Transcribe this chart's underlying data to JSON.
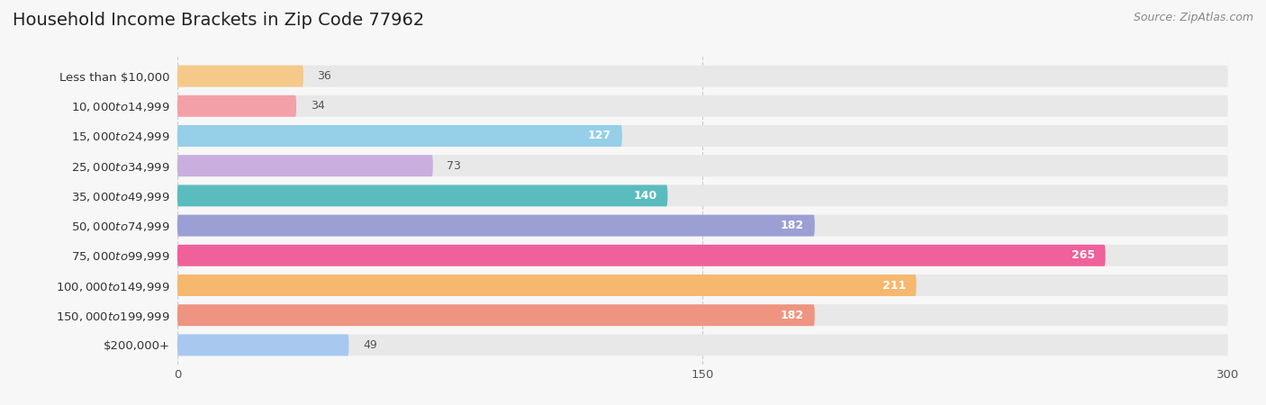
{
  "title": "Household Income Brackets in Zip Code 77962",
  "source": "Source: ZipAtlas.com",
  "categories": [
    "Less than $10,000",
    "$10,000 to $14,999",
    "$15,000 to $24,999",
    "$25,000 to $34,999",
    "$35,000 to $49,999",
    "$50,000 to $74,999",
    "$75,000 to $99,999",
    "$100,000 to $149,999",
    "$150,000 to $199,999",
    "$200,000+"
  ],
  "values": [
    36,
    34,
    127,
    73,
    140,
    182,
    265,
    211,
    182,
    49
  ],
  "bar_colors": [
    "#f5c98a",
    "#f4a0a8",
    "#95cfe8",
    "#c9aede",
    "#5bbcbf",
    "#9b9fd4",
    "#f0609a",
    "#f5b86e",
    "#ef9480",
    "#a8c8f0"
  ],
  "background_color": "#f7f7f7",
  "bar_bg_color": "#e8e8e8",
  "xlim": [
    0,
    300
  ],
  "xticks": [
    0,
    150,
    300
  ],
  "title_fontsize": 14,
  "label_fontsize": 9.5,
  "value_fontsize": 9,
  "source_fontsize": 9
}
